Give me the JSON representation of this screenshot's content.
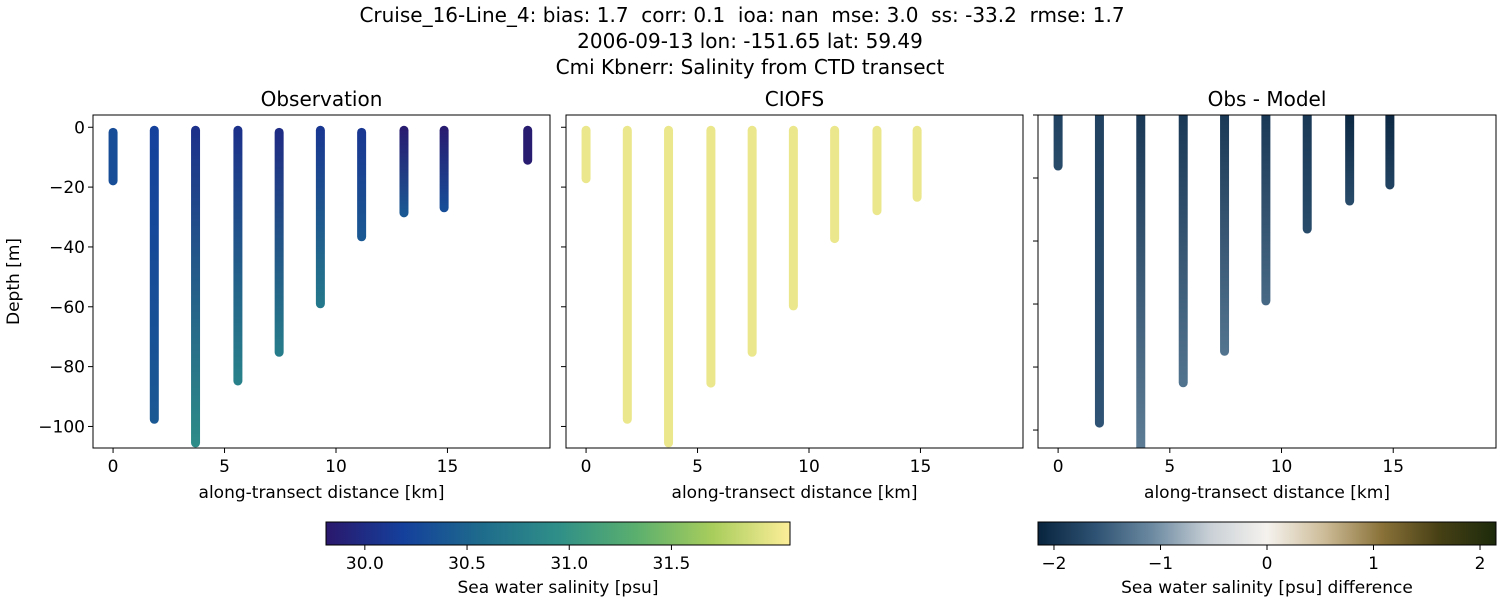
{
  "figure": {
    "title_lines": [
      "Cruise_16-Line_4: bias: 1.7  corr: 0.1  ioa: nan  mse: 3.0  ss: -33.2  rmse: 1.7",
      "2006-09-13 lon: -151.65 lat: 59.49",
      "Cmi Kbnerr: Salinity from CTD transect"
    ],
    "colorbars": [
      {
        "label": "Sea water salinity [psu]",
        "lim": [
          29.81,
          32.08
        ],
        "ticks": [
          {
            "value": 30.0,
            "label": "30.0"
          },
          {
            "value": 30.5,
            "label": "30.5"
          },
          {
            "value": 31.0,
            "label": "31.0"
          },
          {
            "value": 31.5,
            "label": "31.5"
          }
        ],
        "colors": [
          "#2a186c",
          "#14409c",
          "#1e6b8c",
          "#2f8f88",
          "#5aaf6e",
          "#a8cd5c",
          "#fdee99"
        ]
      },
      {
        "label": "Sea water salinity [psu] difference",
        "lim": [
          -2.15,
          2.15
        ],
        "ticks": [
          {
            "value": -2,
            "label": "−2"
          },
          {
            "value": -1,
            "label": "−1"
          },
          0,
          1,
          2
        ],
        "colors": [
          "#08243e",
          "#2e5273",
          "#6c8aa1",
          "#c9d0d6",
          "#f5f2ee",
          "#cdbc98",
          "#8a7239",
          "#474015",
          "#1c2a0b"
        ]
      }
    ]
  },
  "chart_data": [
    {
      "type": "scatter",
      "title": "Observation",
      "xlabel": "along-transect distance [km]",
      "ylabel": "Depth [m]",
      "colorbar": 0,
      "xlim": [
        -0.9,
        19.6
      ],
      "ylim": [
        -107.2,
        4.1
      ],
      "xticks": [
        0,
        5,
        10,
        15
      ],
      "yticks": [
        0,
        {
          "value": -20,
          "label": "−20"
        },
        {
          "value": -40,
          "label": "−40"
        },
        {
          "value": -60,
          "label": "−60"
        },
        {
          "value": -80,
          "label": "−80"
        },
        {
          "value": -100,
          "label": "−100"
        }
      ],
      "ytick_labels": true,
      "x": [
        0,
        1.85,
        3.7,
        5.6,
        7.45,
        9.3,
        11.15,
        13.05,
        14.85,
        18.6
      ],
      "depth_top": [
        -1.7,
        -1,
        -1,
        -1,
        -1.7,
        -1,
        -1.7,
        -1,
        -1,
        -1
      ],
      "depth_bottom": [
        -17.9,
        -97.6,
        -105.5,
        -84.8,
        -75.2,
        -59,
        -36.6,
        -28.6,
        -26.9,
        -11
      ],
      "values_top": [
        30.3,
        30.2,
        30.05,
        30.05,
        30.0,
        30.1,
        30.1,
        29.85,
        29.85,
        29.85
      ],
      "values_bottom": [
        30.3,
        30.4,
        30.9,
        30.8,
        30.75,
        30.7,
        30.4,
        30.4,
        30.3,
        29.85
      ]
    },
    {
      "type": "scatter",
      "title": "CIOFS",
      "xlabel": "along-transect distance [km]",
      "colorbar": 0,
      "xlim": [
        -0.9,
        19.6
      ],
      "ylim": [
        -107.2,
        4.1
      ],
      "xticks": [
        0,
        5,
        10,
        15
      ],
      "yticks": [
        0,
        -20,
        -40,
        -60,
        -80,
        -100
      ],
      "ytick_labels": false,
      "x": [
        0,
        1.85,
        3.7,
        5.6,
        7.45,
        9.3,
        11.15,
        13.05,
        14.85
      ],
      "depth_top": [
        -1,
        -1,
        -1,
        -1,
        -1,
        -1,
        -1,
        -1,
        -1
      ],
      "depth_bottom": [
        -17.2,
        -97.6,
        -105.5,
        -85.5,
        -75.2,
        -59.7,
        -37.2,
        -27.9,
        -23.4
      ],
      "values_top": [
        32.0,
        32.0,
        32.0,
        32.0,
        32.0,
        32.0,
        32.0,
        32.0,
        32.0
      ],
      "values_bottom": [
        32.0,
        32.0,
        32.0,
        32.0,
        32.0,
        32.0,
        32.0,
        32.0,
        32.0
      ]
    },
    {
      "type": "scatter",
      "title": "Obs - Model",
      "xlabel": "along-transect distance [km]",
      "colorbar": 1,
      "xlim": [
        -0.9,
        19.6
      ],
      "ylim": [
        -105.7,
        0
      ],
      "xticks": [
        0,
        5,
        10,
        15
      ],
      "yticks": [
        0,
        -20,
        -40,
        -60,
        -80,
        -100
      ],
      "ytick_labels": false,
      "x": [
        0,
        1.85,
        3.7,
        5.6,
        7.45,
        9.3,
        11.15,
        13.05,
        14.85
      ],
      "depth_top": [
        0,
        0,
        0,
        0,
        0,
        0,
        0,
        0,
        0
      ],
      "depth_bottom": [
        -16.2,
        -97.8,
        -108,
        -85,
        -75,
        -59,
        -36.2,
        -27.3,
        -22.2
      ],
      "values_top": [
        -1.8,
        -1.8,
        -1.9,
        -1.9,
        -1.9,
        -1.9,
        -1.9,
        -2.1,
        -2.1
      ],
      "values_bottom": [
        -1.7,
        -1.6,
        -1.2,
        -1.3,
        -1.3,
        -1.4,
        -1.7,
        -1.7,
        -1.8
      ]
    }
  ]
}
